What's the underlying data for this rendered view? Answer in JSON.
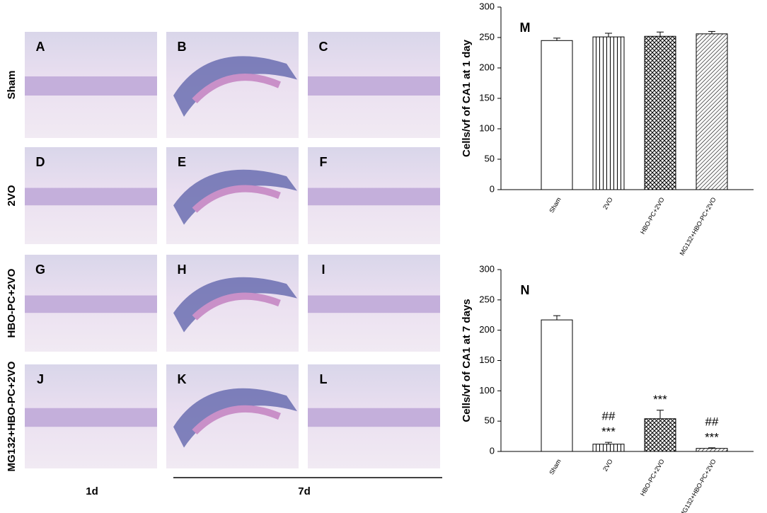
{
  "figure": {
    "row_labels": [
      "Sham",
      "2VO",
      "HBO-PC+2VO",
      "MG132+HBO-PC+2VO"
    ],
    "panel_labels": [
      [
        "A",
        "B",
        "C"
      ],
      [
        "D",
        "E",
        "F"
      ],
      [
        "G",
        "H",
        "I"
      ],
      [
        "J",
        "K",
        "L"
      ]
    ],
    "column_labels": [
      "1d",
      "7d"
    ]
  },
  "chart_data": [
    {
      "type": "bar",
      "panel_label": "M",
      "y_label": "Cells/vf of CA1 at 1 day",
      "categories": [
        "Sham",
        "2VO",
        "HBO-PC+2VO",
        "MG132+HBO-PC+2VO"
      ],
      "values": [
        245,
        251,
        252,
        256
      ],
      "errors": [
        4,
        6,
        7,
        4
      ],
      "hatch": [
        "none",
        "vertical",
        "crosshatch",
        "diagonal"
      ],
      "ylim": [
        0,
        300
      ],
      "yticks": [
        0,
        50,
        100,
        150,
        200,
        250,
        300
      ]
    },
    {
      "type": "bar",
      "panel_label": "N",
      "y_label": "Cells/vf of CA1 at 7 days",
      "categories": [
        "Sham",
        "2VO",
        "HBO-PC+2VO",
        "MG132+HBO-PC+2VO"
      ],
      "values": [
        217,
        12,
        54,
        5
      ],
      "errors": [
        7,
        3,
        14,
        1
      ],
      "bar_annotations": [
        [],
        [
          "##",
          "***"
        ],
        [
          "***"
        ],
        [
          "##",
          "***"
        ]
      ],
      "hatch": [
        "none",
        "vertical",
        "crosshatch",
        "diagonal"
      ],
      "ylim": [
        0,
        300
      ],
      "yticks": [
        0,
        50,
        100,
        150,
        200,
        250,
        300
      ]
    }
  ]
}
